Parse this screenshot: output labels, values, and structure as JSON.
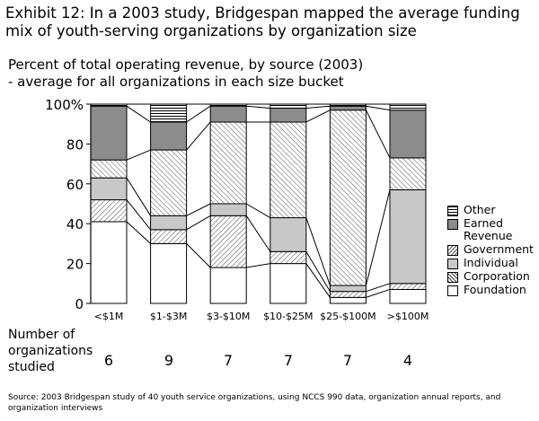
{
  "title": "Exhibit 12: In a 2003 study, Bridgespan mapped the average funding mix of youth-serving organizations by organization size",
  "subtitle_line1": "Percent of total operating revenue, by source (2003)",
  "subtitle_line2": "- average for all organizations in each size bucket",
  "count_label_line1": "Number of",
  "count_label_line2": "organizations",
  "count_label_line3": "studied",
  "source": "Source: 2003 Bridgespan study of 40 youth service organizations, using NCCS 990 data, organization annual reports, and organization interviews",
  "legend": [
    {
      "key": "other",
      "label": "Other"
    },
    {
      "key": "earned",
      "label": "Earned Revenue"
    },
    {
      "key": "gov",
      "label": "Government"
    },
    {
      "key": "indiv",
      "label": "Individual"
    },
    {
      "key": "corp",
      "label": "Corporation"
    },
    {
      "key": "found",
      "label": "Foundation"
    }
  ],
  "legend_earned_line1": "Earned",
  "legend_earned_line2": "Revenue",
  "colors": {
    "earned": "#8c8c8c",
    "indiv": "#c8c8c8",
    "foundation": "#ffffff"
  },
  "chart_data": {
    "type": "bar",
    "stacked": true,
    "categories": [
      "<$1M",
      "$1-$3M",
      "$3-$10M",
      "$10-$25M",
      "$25-$100M",
      ">$100M"
    ],
    "y_ticks": [
      "0",
      "20",
      "40",
      "60",
      "80",
      "100%"
    ],
    "ylim": [
      0,
      100
    ],
    "counts": [
      6,
      9,
      7,
      7,
      7,
      4
    ],
    "series": [
      {
        "name": "Foundation",
        "key": "found",
        "values": [
          41,
          30,
          18,
          20,
          3,
          7
        ]
      },
      {
        "name": "Corporation",
        "key": "corp",
        "values": [
          11,
          7,
          26,
          6,
          3,
          3
        ]
      },
      {
        "name": "Individual",
        "key": "indiv",
        "values": [
          11,
          7,
          6,
          17,
          3,
          47
        ]
      },
      {
        "name": "Government",
        "key": "gov",
        "values": [
          9,
          33,
          41,
          48,
          88,
          16
        ]
      },
      {
        "name": "Earned Revenue",
        "key": "earned",
        "values": [
          27,
          14,
          8,
          7,
          2,
          24
        ]
      },
      {
        "name": "Other",
        "key": "other",
        "values": [
          1,
          9,
          1,
          2,
          1,
          3
        ]
      }
    ]
  }
}
